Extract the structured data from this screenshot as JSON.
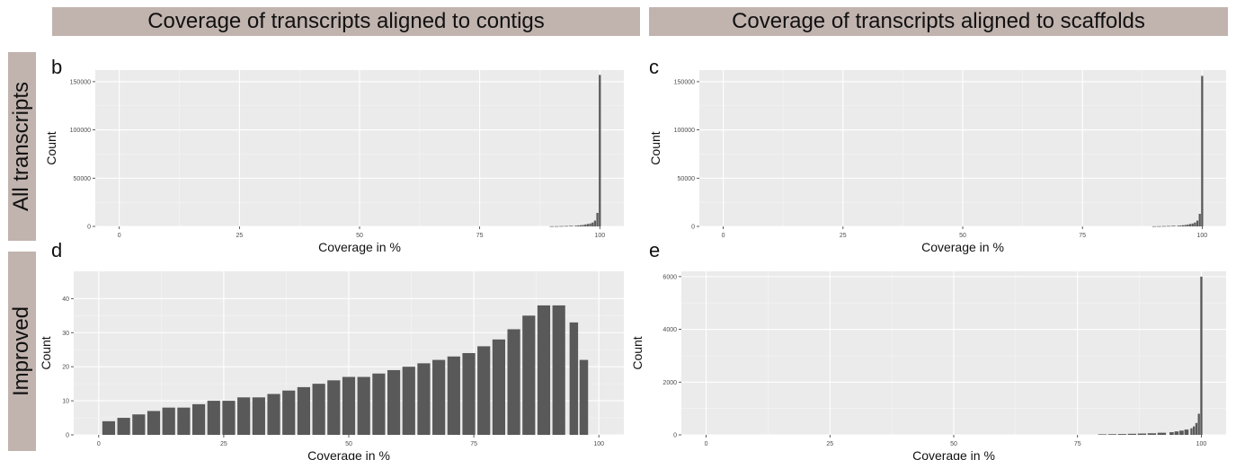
{
  "headers": {
    "col_contigs": "Coverage of transcripts aligned to contigs",
    "col_scaffolds": "Coverage of transcripts aligned to scaffolds",
    "row_all": "All transcripts",
    "row_improved": "Improved"
  },
  "chart_data": [
    {
      "panel": "b",
      "type": "bar",
      "xlabel": "Coverage in %",
      "ylabel": "Count",
      "xlim": [
        -5,
        105
      ],
      "ylim": [
        0,
        162000
      ],
      "x_ticks": [
        0,
        25,
        50,
        75,
        100
      ],
      "y_ticks": [
        0,
        50000,
        100000,
        150000
      ],
      "grid": true,
      "series": [
        {
          "x": [
            90,
            91,
            92,
            93,
            94,
            95,
            95.5,
            96,
            96.5,
            97,
            97.5,
            98,
            98.5,
            99,
            99.5,
            100
          ],
          "values": [
            150,
            200,
            300,
            400,
            600,
            800,
            1000,
            1200,
            1500,
            2000,
            2500,
            3000,
            4000,
            6000,
            14000,
            157000
          ]
        }
      ]
    },
    {
      "panel": "c",
      "type": "bar",
      "xlabel": "Coverage in %",
      "ylabel": "Count",
      "xlim": [
        -5,
        105
      ],
      "ylim": [
        0,
        162000
      ],
      "x_ticks": [
        0,
        25,
        50,
        75,
        100
      ],
      "y_ticks": [
        0,
        50000,
        100000,
        150000
      ],
      "grid": true,
      "series": [
        {
          "x": [
            90,
            91,
            92,
            93,
            94,
            95,
            95.5,
            96,
            96.5,
            97,
            97.5,
            98,
            98.5,
            99,
            99.5,
            100
          ],
          "values": [
            150,
            200,
            300,
            400,
            600,
            800,
            1000,
            1200,
            1500,
            2000,
            2500,
            3000,
            4000,
            6000,
            13000,
            156000
          ]
        }
      ]
    },
    {
      "panel": "d",
      "type": "bar",
      "xlabel": "Coverage in %",
      "ylabel": "Count",
      "xlim": [
        -5,
        105
      ],
      "ylim": [
        0,
        48
      ],
      "x_ticks": [
        0,
        25,
        50,
        75,
        100
      ],
      "y_ticks": [
        0,
        10,
        20,
        30,
        40
      ],
      "grid": true,
      "series": [
        {
          "x": [
            2,
            5,
            8,
            11,
            14,
            17,
            20,
            23,
            26,
            29,
            32,
            35,
            38,
            41,
            44,
            47,
            50,
            53,
            56,
            59,
            62,
            65,
            68,
            71,
            74,
            77,
            80,
            83,
            86,
            89,
            92,
            95,
            97
          ],
          "values": [
            4,
            5,
            6,
            7,
            8,
            8,
            9,
            10,
            10,
            11,
            11,
            12,
            13,
            14,
            15,
            16,
            17,
            17,
            18,
            19,
            20,
            21,
            22,
            23,
            24,
            26,
            28,
            31,
            35,
            38,
            38,
            33,
            22
          ]
        }
      ]
    },
    {
      "panel": "e",
      "type": "bar",
      "xlabel": "Coverage in %",
      "ylabel": "Count",
      "xlim": [
        -5,
        105
      ],
      "ylim": [
        0,
        6200
      ],
      "x_ticks": [
        0,
        25,
        50,
        75,
        100
      ],
      "y_ticks": [
        0,
        2000,
        4000,
        6000
      ],
      "grid": true,
      "series": [
        {
          "x": [
            80,
            82,
            84,
            86,
            88,
            90,
            92,
            94,
            95,
            96,
            97,
            98,
            98.5,
            99,
            99.5,
            100
          ],
          "values": [
            20,
            25,
            30,
            40,
            50,
            60,
            80,
            100,
            130,
            160,
            200,
            250,
            320,
            450,
            800,
            6000
          ]
        }
      ]
    }
  ]
}
